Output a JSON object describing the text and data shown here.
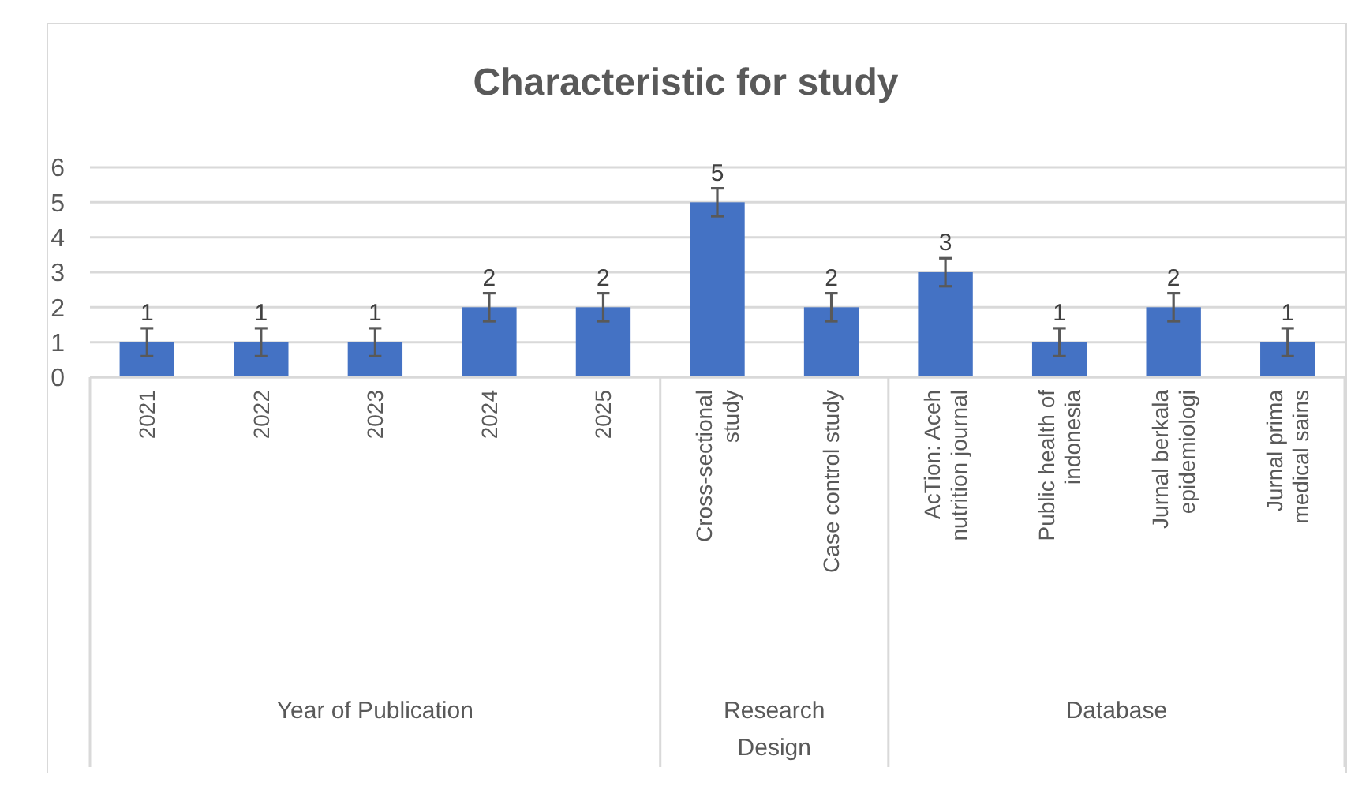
{
  "chart_data": {
    "type": "bar",
    "title": "Characteristic for study",
    "categories": [
      "2021",
      "2022",
      "2023",
      "2024",
      "2025",
      "Cross-sectional study",
      "Case control study",
      "AcTion: Aceh nutrition journal",
      "Public health of indonesia",
      "Jurnal berkala epidemiologi",
      "Jurnal prima medical sains"
    ],
    "values": [
      1,
      1,
      1,
      2,
      2,
      5,
      2,
      3,
      1,
      2,
      1
    ],
    "errors": [
      0.4,
      0.4,
      0.4,
      0.4,
      0.4,
      0.4,
      0.4,
      0.4,
      0.4,
      0.4,
      0.4
    ],
    "color": "#4472c4",
    "data_labels": true,
    "ylim": [
      0,
      6
    ],
    "yticks": [
      0,
      1,
      2,
      3,
      4,
      5,
      6
    ],
    "grid": "y",
    "annotations": [
      "Year of Publication",
      "Research Design",
      "Database"
    ]
  }
}
